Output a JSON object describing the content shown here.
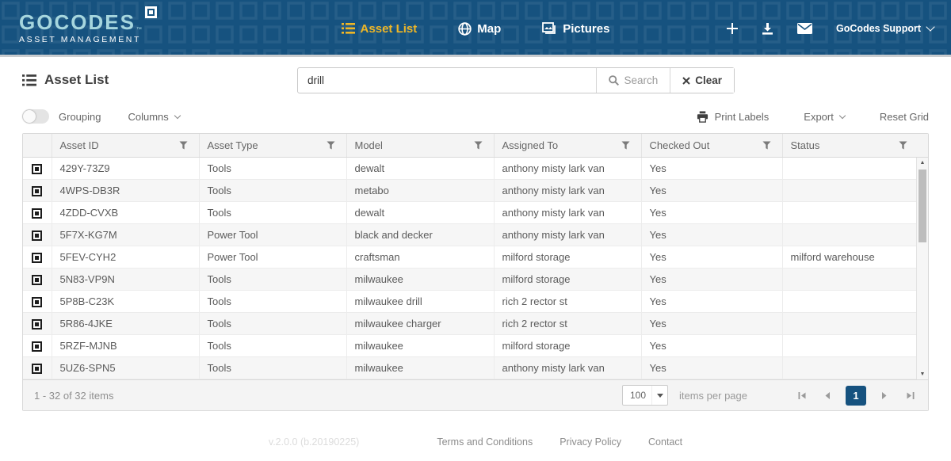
{
  "colors": {
    "header_bg": "#16527F",
    "accent_yellow": "#EEB626"
  },
  "header": {
    "logo_title": "GOCODES",
    "logo_tm": "™",
    "logo_subtitle": "ASSET MANAGEMENT",
    "nav_items": [
      {
        "label": "Asset List",
        "icon": "list-icon",
        "active": true
      },
      {
        "label": "Map",
        "icon": "globe-icon",
        "active": false
      },
      {
        "label": "Pictures",
        "icon": "pictures-icon",
        "active": false
      }
    ],
    "support_label": "GoCodes Support"
  },
  "page": {
    "title": "Asset List"
  },
  "search": {
    "value": "drill",
    "search_label": "Search",
    "clear_label": "Clear"
  },
  "toolbar": {
    "grouping_label": "Grouping",
    "columns_label": "Columns",
    "print_labels_label": "Print Labels",
    "export_label": "Export",
    "reset_grid_label": "Reset Grid"
  },
  "table": {
    "columns": [
      "Asset ID",
      "Asset Type",
      "Model",
      "Assigned To",
      "Checked Out",
      "Status"
    ],
    "rows": [
      {
        "asset_id": "429Y-73Z9",
        "asset_type": "Tools",
        "model": "dewalt",
        "assigned_to": "anthony misty lark van",
        "checked_out": "Yes",
        "status": ""
      },
      {
        "asset_id": "4WPS-DB3R",
        "asset_type": "Tools",
        "model": "metabo",
        "assigned_to": "anthony misty lark van",
        "checked_out": "Yes",
        "status": ""
      },
      {
        "asset_id": "4ZDD-CVXB",
        "asset_type": "Tools",
        "model": "dewalt",
        "assigned_to": "anthony misty lark van",
        "checked_out": "Yes",
        "status": ""
      },
      {
        "asset_id": "5F7X-KG7M",
        "asset_type": "Power Tool",
        "model": "black and decker",
        "assigned_to": "anthony misty lark van",
        "checked_out": "Yes",
        "status": ""
      },
      {
        "asset_id": "5FEV-CYH2",
        "asset_type": "Power Tool",
        "model": "craftsman",
        "assigned_to": "milford storage",
        "checked_out": "Yes",
        "status": "milford warehouse"
      },
      {
        "asset_id": "5N83-VP9N",
        "asset_type": "Tools",
        "model": "milwaukee",
        "assigned_to": "milford storage",
        "checked_out": "Yes",
        "status": ""
      },
      {
        "asset_id": "5P8B-C23K",
        "asset_type": "Tools",
        "model": "milwaukee drill",
        "assigned_to": "rich 2 rector st",
        "checked_out": "Yes",
        "status": ""
      },
      {
        "asset_id": "5R86-4JKE",
        "asset_type": "Tools",
        "model": "milwaukee charger",
        "assigned_to": "rich 2 rector st",
        "checked_out": "Yes",
        "status": ""
      },
      {
        "asset_id": "5RZF-MJNB",
        "asset_type": "Tools",
        "model": "milwaukee",
        "assigned_to": "milford storage",
        "checked_out": "Yes",
        "status": ""
      },
      {
        "asset_id": "5UZ6-SPN5",
        "asset_type": "Tools",
        "model": "milwaukee",
        "assigned_to": "anthony misty lark van",
        "checked_out": "Yes",
        "status": ""
      }
    ]
  },
  "pager": {
    "summary": "1 - 32 of 32 items",
    "page_size": "100",
    "items_per_page_label": "items per page",
    "current_page": "1"
  },
  "footer": {
    "version": "v.2.0.0 (b.20190225)",
    "links": [
      "Terms and Conditions",
      "Privacy Policy",
      "Contact"
    ]
  }
}
